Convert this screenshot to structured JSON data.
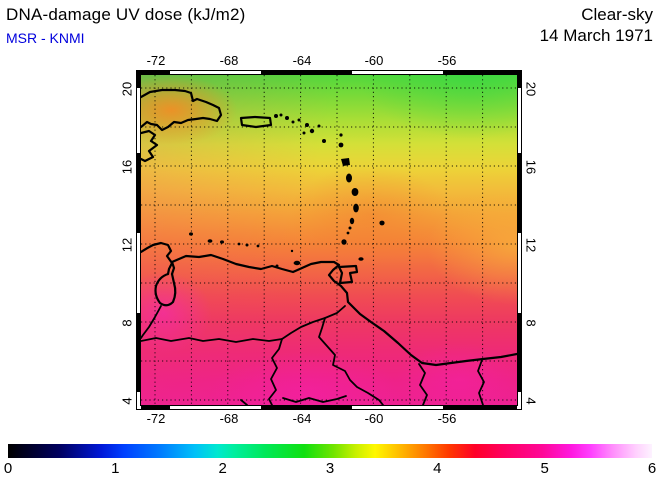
{
  "header": {
    "title": "DNA-damage UV dose (kJ/m2)",
    "source": "MSR - KNMI",
    "sky": "Clear-sky",
    "date": "14 March 1971"
  },
  "map": {
    "lon_labels": [
      "-72",
      "-68",
      "-64",
      "-60",
      "-56"
    ],
    "lat_labels": [
      "20",
      "16",
      "12",
      "8",
      "4"
    ]
  },
  "colorbar": {
    "tick_labels": [
      "0",
      "1",
      "2",
      "3",
      "4",
      "5",
      "6"
    ]
  },
  "colors": {
    "subtitle_blue": "#0000dd",
    "coastline": "#000000"
  },
  "chart_data": {
    "type": "heatmap",
    "title": "DNA-damage UV dose (kJ/m2)",
    "subtitle": "MSR - KNMI",
    "condition": "Clear-sky",
    "date": "14 March 1971",
    "lon_ticks": [
      -72,
      -68,
      -64,
      -60,
      -56
    ],
    "lat_ticks": [
      4,
      8,
      12,
      16,
      20
    ],
    "grid_interval_deg": 2,
    "colorbar": {
      "min": 0,
      "max": 6,
      "unit": "kJ/m2",
      "ticks": [
        0,
        1,
        2,
        3,
        4,
        5,
        6
      ],
      "stops": [
        {
          "value": 0.0,
          "color": "#000000"
        },
        {
          "value": 0.5,
          "color": "#000060"
        },
        {
          "value": 1.0,
          "color": "#0030ff"
        },
        {
          "value": 1.5,
          "color": "#0080ff"
        },
        {
          "value": 2.0,
          "color": "#00eeb8"
        },
        {
          "value": 2.6,
          "color": "#10e010"
        },
        {
          "value": 3.0,
          "color": "#70e400"
        },
        {
          "value": 3.4,
          "color": "#fff800"
        },
        {
          "value": 3.7,
          "color": "#ffc000"
        },
        {
          "value": 4.0,
          "color": "#ff5800"
        },
        {
          "value": 4.4,
          "color": "#ff0028"
        },
        {
          "value": 5.0,
          "color": "#ff0a9e"
        },
        {
          "value": 5.3,
          "color": "#ff20e8"
        },
        {
          "value": 6.0,
          "color": "#fdf2ff"
        }
      ]
    },
    "approx_dose_by_latitude": [
      {
        "lat": 20,
        "dose": 2.8
      },
      {
        "lat": 18,
        "dose": 3.1
      },
      {
        "lat": 16,
        "dose": 3.4
      },
      {
        "lat": 14,
        "dose": 3.6
      },
      {
        "lat": 12,
        "dose": 3.8
      },
      {
        "lat": 10,
        "dose": 4.1
      },
      {
        "lat": 8,
        "dose": 4.4
      },
      {
        "lat": 6,
        "dose": 4.7
      },
      {
        "lat": 4,
        "dose": 4.9
      }
    ]
  }
}
